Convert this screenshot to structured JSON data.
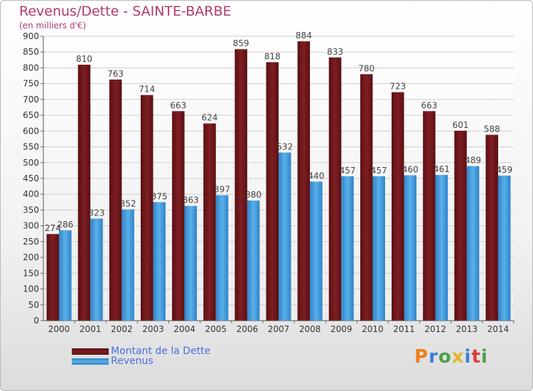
{
  "title": "Revenus/Dette - SAINTE-BARBE",
  "subtitle": "(en milliers d'€)",
  "logo": {
    "text": "Proxiti",
    "colors": [
      "#f07f1a",
      "#3a7fd6",
      "#48a348",
      "#e0b52b",
      "#3a7fd6",
      "#e23c3c",
      "#48a348"
    ]
  },
  "colors": {
    "dette": "#7e1e22",
    "revenus": "#3e9ce0",
    "title": "#b03a6e",
    "legend_text": "#4a6ee0",
    "grid": "#cfcfcf"
  },
  "chart_data": {
    "type": "bar",
    "categories": [
      "2000",
      "2001",
      "2002",
      "2003",
      "2004",
      "2005",
      "2006",
      "2007",
      "2008",
      "2009",
      "2010",
      "2011",
      "2012",
      "2013",
      "2014"
    ],
    "series": [
      {
        "name": "Montant de la Dette",
        "values": [
          274,
          810,
          763,
          714,
          663,
          624,
          859,
          818,
          884,
          833,
          780,
          723,
          663,
          601,
          588
        ]
      },
      {
        "name": "Revenus",
        "values": [
          286,
          323,
          352,
          375,
          363,
          397,
          380,
          532,
          440,
          457,
          457,
          460,
          461,
          489,
          459
        ]
      }
    ],
    "ylim": [
      0,
      900
    ],
    "yticks": [
      0,
      50,
      100,
      150,
      200,
      250,
      300,
      350,
      400,
      450,
      500,
      550,
      600,
      650,
      700,
      750,
      800,
      850,
      900
    ],
    "grid": true,
    "legend": "bottom-left"
  }
}
